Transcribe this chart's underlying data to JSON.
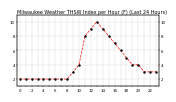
{
  "title": "Milwaukee Weather THSW Index per Hour (F) (Last 24 Hours)",
  "hours": [
    0,
    1,
    2,
    3,
    4,
    5,
    6,
    7,
    8,
    9,
    10,
    11,
    12,
    13,
    14,
    15,
    16,
    17,
    18,
    19,
    20,
    21,
    22,
    23
  ],
  "values": [
    2,
    2,
    2,
    2,
    2,
    2,
    2,
    2,
    2,
    3,
    4,
    8,
    9,
    10,
    9,
    8,
    7,
    6,
    5,
    4,
    4,
    3,
    3,
    3
  ],
  "line_color": "#ff0000",
  "marker_color": "#000000",
  "bg_color": "#ffffff",
  "grid_color": "#888888",
  "ylim_min": 1,
  "ylim_max": 11,
  "ytick_values": [
    2,
    4,
    6,
    8,
    10
  ],
  "title_fontsize": 3.5,
  "tick_fontsize": 2.8
}
